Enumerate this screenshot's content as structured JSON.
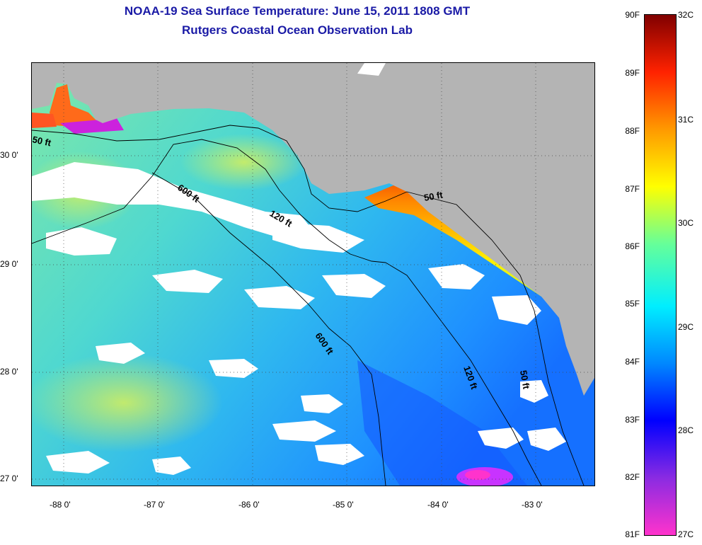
{
  "title": {
    "line1": "NOAA-19 Sea Surface Temperature:  June 15, 2011 1808 GMT",
    "line2": "Rutgers Coastal Ocean Observation Lab"
  },
  "map": {
    "lat_labels": [
      "30 0'",
      "29 0'",
      "28 0'",
      "27 0'"
    ],
    "lon_labels": [
      "-88 0'",
      "-87 0'",
      "-86 0'",
      "-85 0'",
      "-84 0'",
      "-83 0'"
    ],
    "contour_labels": [
      "50 ft",
      "600 ft",
      "120 ft",
      "600 ft",
      "120 ft",
      "50 ft",
      "50 ft"
    ],
    "land_color": "#b4b4b4",
    "cloud_color": "#ffffff"
  },
  "colorbar": {
    "fahrenheit_labels": [
      "90F",
      "89F",
      "88F",
      "87F",
      "86F",
      "85F",
      "84F",
      "83F",
      "82F",
      "81F"
    ],
    "celsius_labels": [
      "32C",
      "31C",
      "30C",
      "29C",
      "28C",
      "27C"
    ],
    "colors": [
      "#ff33cc",
      "#8a2be2",
      "#0000ff",
      "#0088ff",
      "#00eeff",
      "#66ff99",
      "#ffff00",
      "#ff9900",
      "#ff2200",
      "#800000"
    ]
  }
}
